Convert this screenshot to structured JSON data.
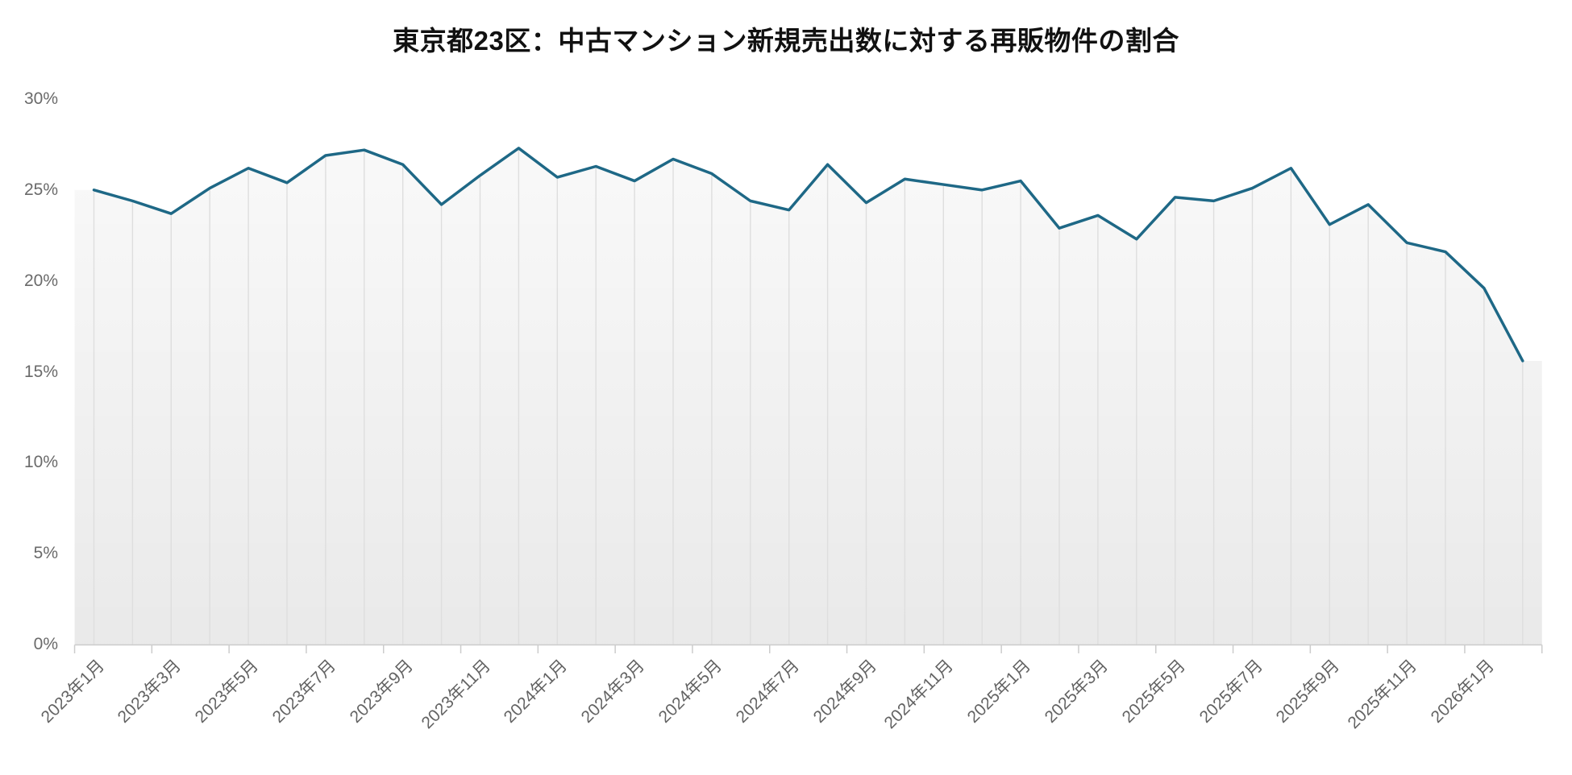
{
  "chart_data": {
    "type": "line",
    "title": "東京都23区：中古マンション新規売出数に対する再販物件の割合",
    "x": [
      "2023年1月",
      "2023年2月",
      "2023年3月",
      "2023年4月",
      "2023年5月",
      "2023年6月",
      "2023年7月",
      "2023年8月",
      "2023年9月",
      "2023年10月",
      "2023年11月",
      "2023年12月",
      "2024年1月",
      "2024年2月",
      "2024年3月",
      "2024年4月",
      "2024年5月",
      "2024年6月",
      "2024年7月",
      "2024年8月",
      "2024年9月",
      "2024年10月",
      "2024年11月",
      "2024年12月",
      "2025年1月",
      "2025年2月",
      "2025年3月",
      "2025年4月",
      "2025年5月",
      "2025年6月",
      "2025年7月",
      "2025年8月",
      "2025年9月",
      "2025年10月",
      "2025年11月",
      "2025年12月",
      "2026年1月",
      "2026年2月"
    ],
    "series": [
      {
        "name": "再販物件の割合",
        "values": [
          25.0,
          24.4,
          23.7,
          25.1,
          26.2,
          25.4,
          26.9,
          27.2,
          26.4,
          24.2,
          25.8,
          27.3,
          25.7,
          26.3,
          25.5,
          26.7,
          25.9,
          24.4,
          23.9,
          26.4,
          24.3,
          25.6,
          25.3,
          25.0,
          25.5,
          22.9,
          23.6,
          22.3,
          24.6,
          24.4,
          25.1,
          26.2,
          23.1,
          24.2,
          22.1,
          21.6,
          19.6,
          15.6
        ]
      }
    ],
    "xlabel": "",
    "ylabel": "",
    "ylim": [
      0,
      30
    ],
    "y_tick_step": 5,
    "y_tick_labels": [
      "0%",
      "5%",
      "10%",
      "15%",
      "20%",
      "25%",
      "30%"
    ],
    "x_tick_labels": [
      "2023年1月",
      "2023年3月",
      "2023年5月",
      "2023年7月",
      "2023年9月",
      "2023年11月",
      "2024年1月",
      "2024年3月",
      "2024年5月",
      "2024年7月",
      "2024年9月",
      "2024年11月",
      "2025年1月",
      "2025年3月",
      "2025年5月",
      "2025年7月",
      "2025年9月",
      "2025年11月",
      "2026年1月"
    ],
    "x_label_every": 2,
    "grid": "vertical-drop-lines-only",
    "legend_position": "none",
    "colors": {
      "line": "#1e6886",
      "axis": "#cccccc",
      "drop_line": "#dedede",
      "y_label_text": "#6a6a6a",
      "x_label_text": "#636363",
      "title_text": "#111111",
      "background": "#ffffff"
    }
  }
}
